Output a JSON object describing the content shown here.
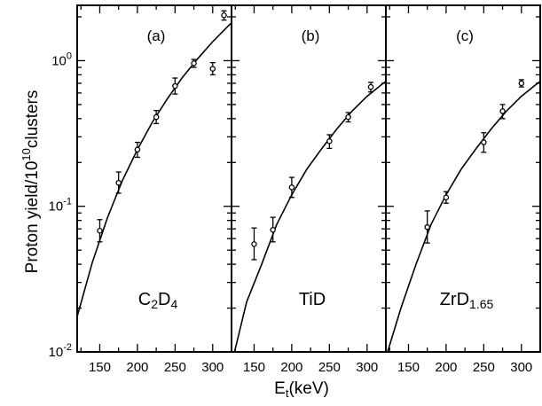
{
  "figure": {
    "ylabel_main": "Proton yield/10",
    "ylabel_exp": "10",
    "ylabel_tail": "clusters",
    "xlabel_main": "E",
    "xlabel_sub": "t",
    "xlabel_tail": "(keV)"
  },
  "chart_data": [
    {
      "type": "scatter",
      "panel_label": "(a)",
      "material": {
        "parts": [
          [
            "C",
            ""
          ],
          [
            "2",
            "sub"
          ],
          [
            "D",
            ""
          ],
          [
            "4",
            "sub"
          ]
        ]
      },
      "x_ticks": [
        "150",
        "200",
        "250",
        "300"
      ],
      "y_ticks": [
        "10-2",
        "10-1",
        "100"
      ],
      "xlim": [
        120,
        325
      ],
      "ylim": [
        0.01,
        2.4
      ],
      "yscale": "log",
      "points": [
        {
          "x": 150,
          "y": 0.068,
          "lo": 0.057,
          "hi": 0.081
        },
        {
          "x": 175,
          "y": 0.145,
          "lo": 0.123,
          "hi": 0.172
        },
        {
          "x": 200,
          "y": 0.245,
          "lo": 0.217,
          "hi": 0.275
        },
        {
          "x": 225,
          "y": 0.41,
          "lo": 0.37,
          "hi": 0.455
        },
        {
          "x": 250,
          "y": 0.67,
          "lo": 0.59,
          "hi": 0.76
        },
        {
          "x": 275,
          "y": 0.96,
          "lo": 0.9,
          "hi": 1.02
        },
        {
          "x": 300,
          "y": 0.88,
          "lo": 0.8,
          "hi": 0.97
        },
        {
          "x": 315,
          "y": 2.05,
          "lo": 1.9,
          "hi": 2.2
        }
      ],
      "curve": [
        [
          120,
          0.0175
        ],
        [
          140,
          0.041
        ],
        [
          160,
          0.083
        ],
        [
          180,
          0.15
        ],
        [
          200,
          0.245
        ],
        [
          220,
          0.38
        ],
        [
          240,
          0.55
        ],
        [
          260,
          0.77
        ],
        [
          280,
          1.03
        ],
        [
          300,
          1.35
        ],
        [
          320,
          1.72
        ],
        [
          325,
          1.82
        ]
      ]
    },
    {
      "type": "scatter",
      "panel_label": "(b)",
      "material": {
        "parts": [
          [
            "TiD",
            ""
          ]
        ]
      },
      "x_ticks": [
        "150",
        "200",
        "250",
        "300"
      ],
      "y_ticks": [],
      "xlim": [
        120,
        325
      ],
      "ylim": [
        0.01,
        2.4
      ],
      "yscale": "log",
      "points": [
        {
          "x": 150,
          "y": 0.055,
          "lo": 0.043,
          "hi": 0.071
        },
        {
          "x": 175,
          "y": 0.069,
          "lo": 0.057,
          "hi": 0.084
        },
        {
          "x": 200,
          "y": 0.135,
          "lo": 0.115,
          "hi": 0.158
        },
        {
          "x": 250,
          "y": 0.28,
          "lo": 0.25,
          "hi": 0.31
        },
        {
          "x": 275,
          "y": 0.41,
          "lo": 0.38,
          "hi": 0.44
        },
        {
          "x": 305,
          "y": 0.66,
          "lo": 0.61,
          "hi": 0.71
        }
      ],
      "curve": [
        [
          123,
          0.0095
        ],
        [
          140,
          0.022
        ],
        [
          160,
          0.04
        ],
        [
          180,
          0.075
        ],
        [
          200,
          0.12
        ],
        [
          220,
          0.18
        ],
        [
          240,
          0.25
        ],
        [
          260,
          0.34
        ],
        [
          280,
          0.45
        ],
        [
          300,
          0.57
        ],
        [
          320,
          0.69
        ],
        [
          325,
          0.72
        ]
      ]
    },
    {
      "type": "scatter",
      "panel_label": "(c)",
      "material": {
        "parts": [
          [
            "ZrD",
            ""
          ],
          [
            "1.65",
            "sub"
          ]
        ]
      },
      "x_ticks": [
        "150",
        "200",
        "250",
        "300"
      ],
      "y_ticks": [],
      "xlim": [
        120,
        325
      ],
      "ylim": [
        0.01,
        2.4
      ],
      "yscale": "log",
      "points": [
        {
          "x": 175,
          "y": 0.072,
          "lo": 0.056,
          "hi": 0.093
        },
        {
          "x": 200,
          "y": 0.115,
          "lo": 0.105,
          "hi": 0.126
        },
        {
          "x": 250,
          "y": 0.275,
          "lo": 0.235,
          "hi": 0.32
        },
        {
          "x": 275,
          "y": 0.45,
          "lo": 0.4,
          "hi": 0.5
        },
        {
          "x": 300,
          "y": 0.7,
          "lo": 0.66,
          "hi": 0.74
        }
      ],
      "curve": [
        [
          121,
          0.0095
        ],
        [
          140,
          0.02
        ],
        [
          160,
          0.04
        ],
        [
          180,
          0.075
        ],
        [
          200,
          0.12
        ],
        [
          220,
          0.18
        ],
        [
          240,
          0.25
        ],
        [
          260,
          0.34
        ],
        [
          280,
          0.45
        ],
        [
          300,
          0.57
        ],
        [
          320,
          0.69
        ],
        [
          325,
          0.72
        ]
      ]
    }
  ]
}
